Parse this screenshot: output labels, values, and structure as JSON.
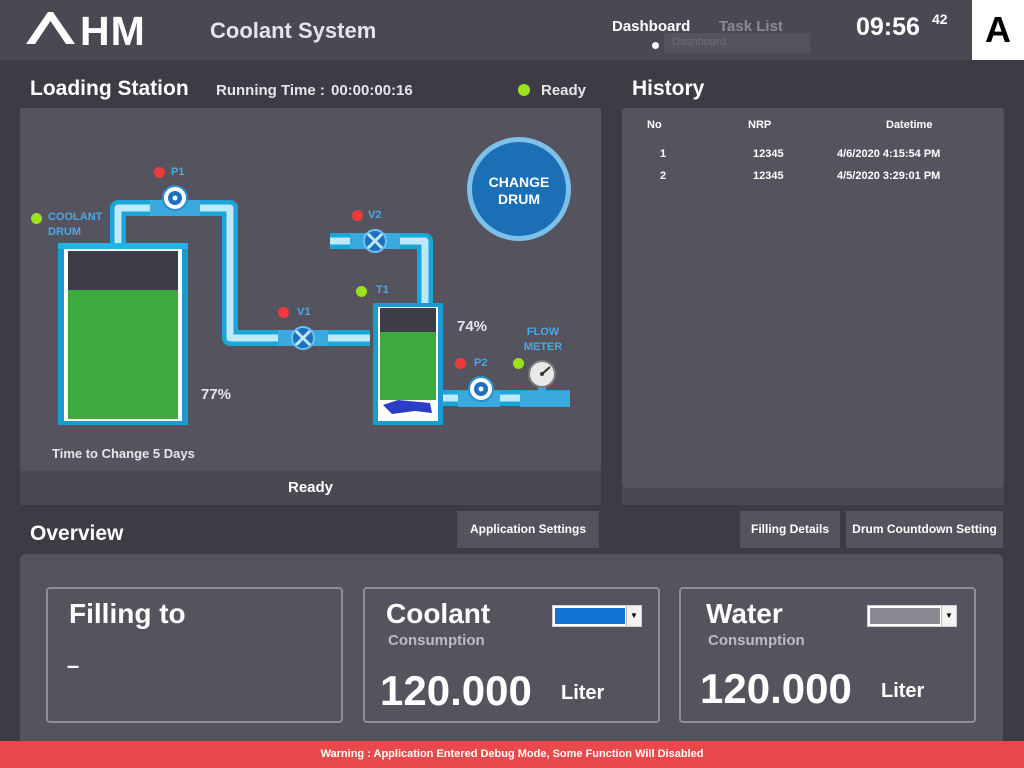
{
  "header": {
    "logo_text": "AHM",
    "app_title": "Coolant System",
    "nav": {
      "dashboard": "Dashboard",
      "task_list": "Task List"
    },
    "ghost_tab": "Dashboard",
    "clock": {
      "time": "09:56",
      "seconds": "42"
    },
    "user_badge": "A"
  },
  "loading_station": {
    "title": "Loading Station",
    "running_time_label": "Running Time :",
    "running_time_value": "00:00:00:16",
    "status": "Ready",
    "footer_status": "Ready",
    "change_drum_label": [
      "CHANGE",
      "DRUM"
    ],
    "coolant_drum_label": [
      "COOLANT",
      "DRUM"
    ],
    "coolant_drum_percent": "77%",
    "coolant_drum_level": 0.77,
    "tank_percent": "74%",
    "tank_level": 0.74,
    "time_to_change": "Time to Change 5 Days",
    "components": {
      "p1": {
        "label": "P1",
        "status": "red"
      },
      "v1": {
        "label": "V1",
        "status": "red"
      },
      "v2": {
        "label": "V2",
        "status": "red"
      },
      "t1": {
        "label": "T1",
        "status": "green"
      },
      "p2": {
        "label": "P2",
        "status": "red"
      },
      "flow_meter": {
        "label": [
          "FLOW",
          "METER"
        ],
        "status": "green"
      }
    }
  },
  "history": {
    "title": "History",
    "columns": [
      "No",
      "NRP",
      "Datetime"
    ],
    "rows": [
      {
        "no": "1",
        "nrp": "12345",
        "datetime": "4/6/2020 4:15:54 PM"
      },
      {
        "no": "2",
        "nrp": "12345",
        "datetime": "4/5/2020 3:29:01 PM"
      }
    ]
  },
  "overview": {
    "title": "Overview",
    "buttons": {
      "application_settings": "Application Settings",
      "filling_details": "Filling Details",
      "drum_countdown": "Drum Countdown Setting"
    },
    "filling_to": {
      "title": "Filling to",
      "value": "–"
    },
    "coolant": {
      "title": "Coolant",
      "subtitle": "Consumption",
      "value": "120.000",
      "unit": "Liter",
      "selector_color": "#1175d6"
    },
    "water": {
      "title": "Water",
      "subtitle": "Consumption",
      "value": "120.000",
      "unit": "Liter",
      "selector_color": "#8a8992"
    }
  },
  "warning": "Warning :   Application Entered Debug Mode, Some Function Will Disabled",
  "colors": {
    "background": "#3d3c45",
    "panel": "#55545e",
    "pipe": "#3cc8f0",
    "accent_blue": "#1a6fb5",
    "ok": "#9be21d",
    "alarm": "#f03a3a",
    "level_green": "#3caa3c",
    "warning": "#e84a4b"
  }
}
